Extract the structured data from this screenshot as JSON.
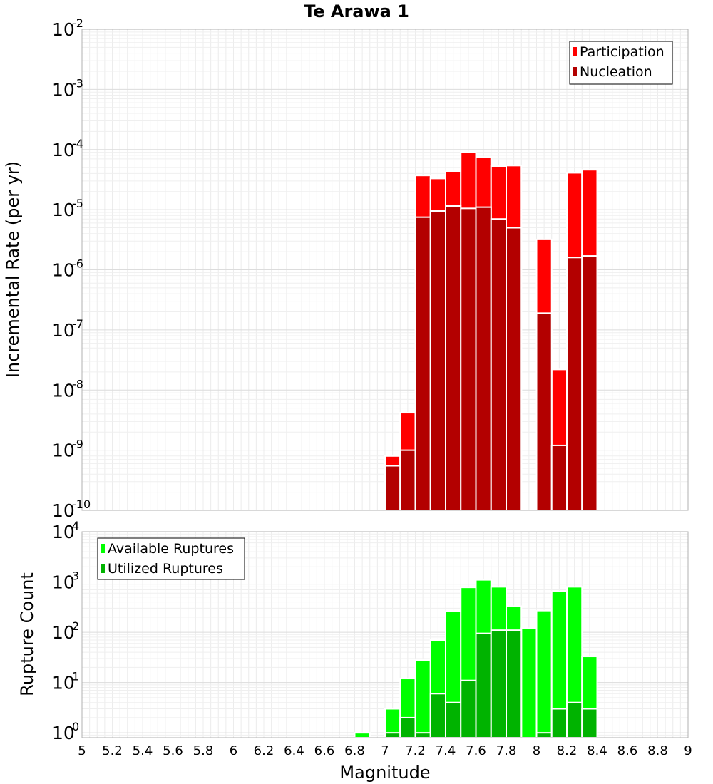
{
  "chart_data": [
    {
      "type": "bar",
      "title": "Te Arawa 1",
      "ylabel": "Incremental Rate (per yr)",
      "xlabel": "",
      "xlim": [
        5,
        9
      ],
      "ylim": [
        1e-10,
        0.01
      ],
      "yscale": "log",
      "ytick_exponents": [
        "-10",
        "-9",
        "-8",
        "-7",
        "-6",
        "-5",
        "-4",
        "-3",
        "-2"
      ],
      "ytick_base": "10",
      "grid": true,
      "legend": "top-right",
      "bin_width": 0.1,
      "colors": {
        "participation": "#ff0000",
        "nucleation": "#b30000"
      },
      "series": [
        {
          "name": "Participation",
          "x": [
            7.05,
            7.15,
            7.25,
            7.35,
            7.45,
            7.55,
            7.65,
            7.75,
            7.85,
            8.05,
            8.15,
            8.25,
            8.35
          ],
          "values": [
            8e-10,
            4.2e-09,
            3.7e-05,
            3.3e-05,
            4.3e-05,
            9e-05,
            7.5e-05,
            5.3e-05,
            5.4e-05,
            3.2e-06,
            2.2e-08,
            4.1e-05,
            4.6e-05
          ]
        },
        {
          "name": "Nucleation",
          "x": [
            7.05,
            7.15,
            7.25,
            7.35,
            7.45,
            7.55,
            7.65,
            7.75,
            7.85,
            8.05,
            8.15,
            8.25,
            8.35
          ],
          "values": [
            5.5e-10,
            1e-09,
            7.5e-06,
            9.5e-06,
            1.15e-05,
            1.05e-05,
            1.1e-05,
            7e-06,
            5e-06,
            1.9e-07,
            1.2e-09,
            1.6e-06,
            1.7e-06
          ]
        }
      ]
    },
    {
      "type": "bar",
      "title": "",
      "ylabel": "Rupture Count",
      "xlabel": "Magnitude",
      "xlim": [
        5,
        9
      ],
      "ylim": [
        0.8,
        10000
      ],
      "yscale": "log",
      "ytick_exponents": [
        "0",
        "1",
        "2",
        "3",
        "4"
      ],
      "ytick_base": "10",
      "xticks": [
        "5",
        "5.2",
        "5.4",
        "5.6",
        "5.8",
        "6",
        "6.2",
        "6.4",
        "6.6",
        "6.8",
        "7",
        "7.2",
        "7.4",
        "7.6",
        "7.8",
        "8",
        "8.2",
        "8.4",
        "8.6",
        "8.8",
        "9"
      ],
      "grid": true,
      "legend": "top-left",
      "bin_width": 0.1,
      "colors": {
        "available": "#00ff00",
        "utilized": "#00b300"
      },
      "series": [
        {
          "name": "Available Ruptures",
          "x": [
            6.85,
            7.05,
            7.15,
            7.25,
            7.35,
            7.45,
            7.55,
            7.65,
            7.75,
            7.85,
            7.95,
            8.05,
            8.15,
            8.25,
            8.35
          ],
          "values": [
            1,
            3,
            12,
            28,
            70,
            260,
            780,
            1100,
            800,
            330,
            120,
            270,
            650,
            800,
            33
          ]
        },
        {
          "name": "Utilized Ruptures",
          "x": [
            7.05,
            7.15,
            7.25,
            7.35,
            7.45,
            7.55,
            7.65,
            7.75,
            7.85,
            8.05,
            8.15,
            8.25,
            8.35
          ],
          "values": [
            1,
            2,
            1,
            6,
            4,
            11,
            95,
            110,
            110,
            1,
            3,
            4,
            3
          ]
        }
      ]
    }
  ]
}
